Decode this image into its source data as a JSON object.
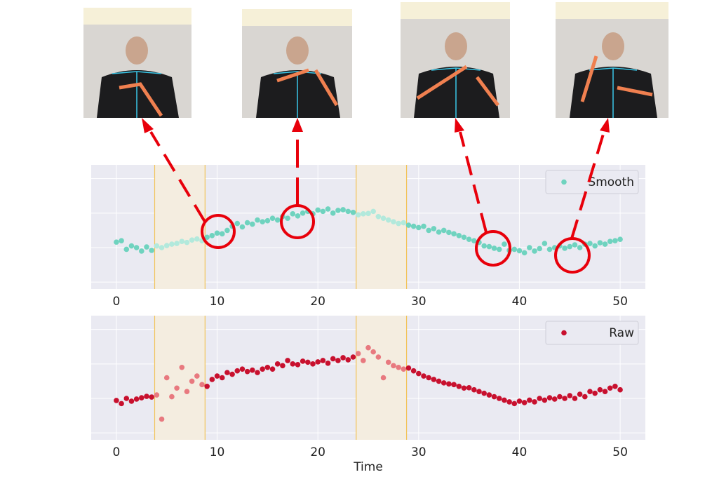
{
  "chart_data": [
    {
      "type": "scatter",
      "x": [
        0,
        0.5,
        1,
        1.5,
        2,
        2.5,
        3,
        3.5,
        4,
        4.5,
        5,
        5.5,
        6,
        6.5,
        7,
        7.5,
        8,
        8.5,
        9,
        9.5,
        10,
        10.5,
        11,
        11.5,
        12,
        12.5,
        13,
        13.5,
        14,
        14.5,
        15,
        15.5,
        16,
        16.5,
        17,
        17.5,
        18,
        18.5,
        19,
        19.5,
        20,
        20.5,
        21,
        21.5,
        22,
        22.5,
        23,
        23.5,
        24,
        24.5,
        25,
        25.5,
        26,
        26.5,
        27,
        27.5,
        28,
        28.5,
        29,
        29.5,
        30,
        30.5,
        31,
        31.5,
        32,
        32.5,
        33,
        33.5,
        34,
        34.5,
        35,
        35.5,
        36,
        36.5,
        37,
        37.5,
        38,
        38.5,
        39,
        39.5,
        40,
        40.5,
        41,
        41.5,
        42,
        42.5,
        43,
        43.5,
        44,
        44.5,
        45,
        45.5,
        46,
        46.5,
        47,
        47.5,
        48,
        48.5,
        49,
        49.5,
        50
      ],
      "series": [
        {
          "name": "Smooth",
          "color": "#6fd3bf",
          "highlight_color": "#b2e9dc",
          "values": [
            1.16,
            1.2,
            0.95,
            1.05,
            1.0,
            0.9,
            1.02,
            0.92,
            1.05,
            1.0,
            1.06,
            1.1,
            1.12,
            1.18,
            1.15,
            1.22,
            1.25,
            1.2,
            1.3,
            1.35,
            1.42,
            1.4,
            1.5,
            1.62,
            1.7,
            1.6,
            1.72,
            1.68,
            1.8,
            1.75,
            1.78,
            1.85,
            1.8,
            1.9,
            1.85,
            1.98,
            1.92,
            2.0,
            2.05,
            1.98,
            2.09,
            2.05,
            2.12,
            2.0,
            2.08,
            2.1,
            2.05,
            2.02,
            1.95,
            1.98,
            1.99,
            2.05,
            1.9,
            1.85,
            1.8,
            1.75,
            1.7,
            1.72,
            1.65,
            1.62,
            1.58,
            1.62,
            1.5,
            1.55,
            1.45,
            1.5,
            1.44,
            1.4,
            1.35,
            1.3,
            1.24,
            1.2,
            1.15,
            1.05,
            1.03,
            0.98,
            0.95,
            1.1,
            0.92,
            0.95,
            0.91,
            0.85,
            1.0,
            0.9,
            0.97,
            1.12,
            0.95,
            1.0,
            1.05,
            0.98,
            1.03,
            1.08,
            1.0,
            1.1,
            1.12,
            1.05,
            1.14,
            1.1,
            1.18,
            1.2,
            1.24
          ]
        }
      ],
      "highlight_spans": [
        [
          3.8,
          8.8
        ],
        [
          23.8,
          28.8
        ]
      ],
      "span_color": "#f4ede0",
      "span_edge_color": "#f2c45a",
      "xlim": [
        -2.5,
        52.5
      ],
      "xticks": [
        0,
        10,
        20,
        30,
        40,
        50
      ],
      "ylim": [
        -0.2,
        3.4
      ],
      "yticks": [
        0,
        1,
        2,
        3
      ],
      "grid": true,
      "legend": "upper right"
    },
    {
      "type": "scatter",
      "xlabel": "Time",
      "x": [
        0,
        0.5,
        1,
        1.5,
        2,
        2.5,
        3,
        3.5,
        4,
        4.5,
        5,
        5.5,
        6,
        6.5,
        7,
        7.5,
        8,
        8.5,
        9,
        9.5,
        10,
        10.5,
        11,
        11.5,
        12,
        12.5,
        13,
        13.5,
        14,
        14.5,
        15,
        15.5,
        16,
        16.5,
        17,
        17.5,
        18,
        18.5,
        19,
        19.5,
        20,
        20.5,
        21,
        21.5,
        22,
        22.5,
        23,
        23.5,
        24,
        24.5,
        25,
        25.5,
        26,
        26.5,
        27,
        27.5,
        28,
        28.5,
        29,
        29.5,
        30,
        30.5,
        31,
        31.5,
        32,
        32.5,
        33,
        33.5,
        34,
        34.5,
        35,
        35.5,
        36,
        36.5,
        37,
        37.5,
        38,
        38.5,
        39,
        39.5,
        40,
        40.5,
        41,
        41.5,
        42,
        42.5,
        43,
        43.5,
        44,
        44.5,
        45,
        45.5,
        46,
        46.5,
        47,
        47.5,
        48,
        48.5,
        49,
        49.5,
        50
      ],
      "series": [
        {
          "name": "Raw",
          "color": "#c8102e",
          "highlight_color": "#e8797f",
          "values": [
            0.94,
            0.85,
            1.0,
            0.92,
            0.98,
            1.02,
            1.06,
            1.04,
            1.1,
            0.4,
            1.6,
            1.05,
            1.3,
            1.9,
            1.2,
            1.5,
            1.65,
            1.4,
            1.35,
            1.55,
            1.65,
            1.6,
            1.75,
            1.7,
            1.8,
            1.85,
            1.78,
            1.82,
            1.75,
            1.85,
            1.9,
            1.85,
            2.0,
            1.95,
            2.1,
            2.0,
            1.98,
            2.08,
            2.05,
            2.0,
            2.06,
            2.1,
            2.02,
            2.15,
            2.1,
            2.18,
            2.12,
            2.2,
            2.3,
            2.1,
            2.47,
            2.35,
            2.2,
            1.6,
            2.05,
            1.95,
            1.9,
            1.85,
            1.88,
            1.8,
            1.72,
            1.65,
            1.6,
            1.55,
            1.5,
            1.45,
            1.42,
            1.4,
            1.35,
            1.3,
            1.31,
            1.25,
            1.2,
            1.15,
            1.1,
            1.05,
            1.0,
            0.95,
            0.9,
            0.85,
            0.92,
            0.88,
            0.95,
            0.9,
            1.0,
            0.95,
            1.02,
            0.98,
            1.05,
            1.0,
            1.08,
            1.0,
            1.12,
            1.05,
            1.2,
            1.15,
            1.25,
            1.2,
            1.3,
            1.35,
            1.25
          ]
        }
      ],
      "highlight_spans": [
        [
          3.8,
          8.8
        ],
        [
          23.8,
          28.8
        ]
      ],
      "span_color": "#f4ede0",
      "span_edge_color": "#f2c45a",
      "xlim": [
        -2.5,
        52.5
      ],
      "xticks": [
        0,
        10,
        20,
        30,
        40,
        50
      ],
      "ylim": [
        -0.2,
        3.4
      ],
      "yticks": [
        0,
        1,
        2,
        3
      ],
      "grid": true,
      "legend": "upper right"
    }
  ]
}
